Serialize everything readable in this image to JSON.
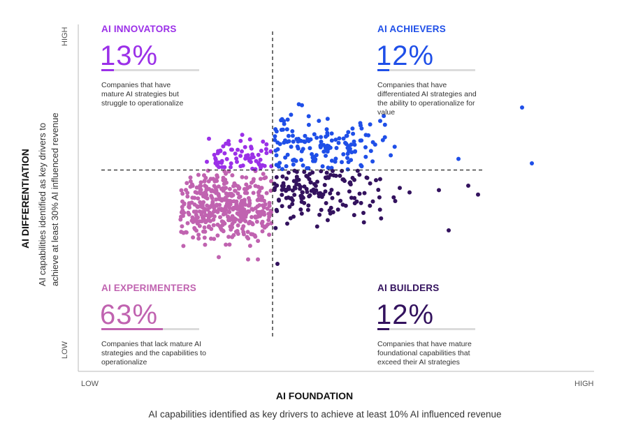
{
  "colors": {
    "innovators": "#9b30e8",
    "achievers": "#1f4fe8",
    "experimenters": "#c063b0",
    "builders": "#33125e",
    "divider": "#333333",
    "axis": "#b8b8b8"
  },
  "chart_data": {
    "type": "scatter",
    "title": "",
    "xlabel": "AI FOUNDATION",
    "xlabel_sub": "AI capabilities identified as key drivers to achieve at least 10% AI influenced revenue",
    "ylabel": "AI DIFFERENTIATION",
    "ylabel_sub_line1": "AI capabilities identified as key drivers to",
    "ylabel_sub_line2": "achieve at least 30% AI influenced revenue",
    "x_low": "LOW",
    "x_high": "HIGH",
    "y_low": "LOW",
    "y_high": "HIGH",
    "xlim": [
      0,
      100
    ],
    "ylim": [
      0,
      100
    ],
    "x_threshold": 30,
    "y_threshold": 52,
    "quadrants": [
      {
        "key": "innovators",
        "title": "AI INNOVATORS",
        "percent": "13%",
        "share": 0.13,
        "description": [
          "Companies that have",
          "mature AI strategies but",
          "struggle to operationalize"
        ]
      },
      {
        "key": "achievers",
        "title": "AI ACHIEVERS",
        "percent": "12%",
        "share": 0.12,
        "description": [
          "Companies that have",
          "differentiated AI strategies and",
          "the ability to operationalize for",
          "value"
        ]
      },
      {
        "key": "experimenters",
        "title": "AI EXPERIMENTERS",
        "percent": "63%",
        "share": 0.63,
        "description": [
          "Companies that lack mature AI",
          "strategies and the capabilities to",
          "operationalize"
        ]
      },
      {
        "key": "builders",
        "title": "AI BUILDERS",
        "percent": "12%",
        "share": 0.12,
        "description": [
          "Companies that have mature",
          "foundational capabilities that",
          "exceed their AI strategies"
        ]
      }
    ],
    "outliers": [
      {
        "group": "achievers",
        "x": 81,
        "y": 80
      },
      {
        "group": "achievers",
        "x": 83,
        "y": 55
      },
      {
        "group": "achievers",
        "x": 68,
        "y": 57
      },
      {
        "group": "achievers",
        "x": 52,
        "y": 74
      },
      {
        "group": "achievers",
        "x": 48,
        "y": 72
      },
      {
        "group": "achievers",
        "x": 36,
        "y": 81
      },
      {
        "group": "builders",
        "x": 64,
        "y": 43
      },
      {
        "group": "builders",
        "x": 70,
        "y": 45
      },
      {
        "group": "builders",
        "x": 72,
        "y": 41
      },
      {
        "group": "builders",
        "x": 66,
        "y": 25
      },
      {
        "group": "builders",
        "x": 56,
        "y": 44
      },
      {
        "group": "builders",
        "x": 58,
        "y": 42
      },
      {
        "group": "builders",
        "x": 33,
        "y": 28
      },
      {
        "group": "builders",
        "x": 31,
        "y": 10
      },
      {
        "group": "experimenters",
        "x": 27,
        "y": 12
      },
      {
        "group": "experimenters",
        "x": 25,
        "y": 12
      },
      {
        "group": "experimenters",
        "x": 19,
        "y": 13
      },
      {
        "group": "innovators",
        "x": 17,
        "y": 66
      },
      {
        "group": "innovators",
        "x": 21,
        "y": 65
      }
    ],
    "clusters": [
      {
        "group": "experimenters",
        "count": 430,
        "seed": 11,
        "cx": 20,
        "cy": 36,
        "sx": 6.5,
        "sy": 8.5,
        "xmin": 11,
        "xmax": 29.8,
        "ymin": 18,
        "ymax": 51.8
      },
      {
        "group": "innovators",
        "count": 70,
        "seed": 23,
        "cx": 24,
        "cy": 57,
        "sx": 4.5,
        "sy": 3.5,
        "xmin": 16,
        "xmax": 29.8,
        "ymin": 52.3,
        "ymax": 68
      },
      {
        "group": "achievers",
        "count": 150,
        "seed": 37,
        "cx": 37,
        "cy": 62,
        "sx": 7.5,
        "sy": 8,
        "xmin": 30.3,
        "xmax": 60,
        "ymin": 52.3,
        "ymax": 84
      },
      {
        "group": "builders",
        "count": 150,
        "seed": 51,
        "cx": 37,
        "cy": 43,
        "sx": 7.5,
        "sy": 7,
        "xmin": 30.3,
        "xmax": 62,
        "ymin": 20,
        "ymax": 51.8
      }
    ]
  }
}
